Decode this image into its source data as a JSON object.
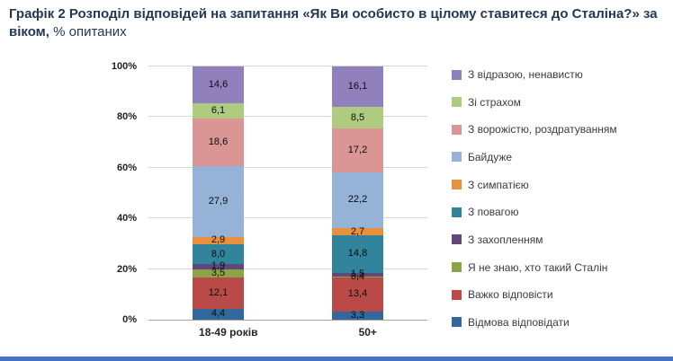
{
  "title": {
    "bold": "Графік 2 Розподіл відповідей на запитання «Як Ви особисто в цілому ставитеся до Сталіна?» за віком,",
    "suffix": " % опитаних"
  },
  "chart_data": {
    "type": "bar",
    "stacked": true,
    "orientation": "vertical",
    "title": "Графік 2 Розподіл відповідей на запитання «Як Ви особисто в цілому ставитеся до Сталіна?» за віком, % опитаних",
    "unit": "%",
    "ylim": [
      0,
      100
    ],
    "y_ticks": [
      "0%",
      "20%",
      "40%",
      "60%",
      "80%",
      "100%"
    ],
    "grid": true,
    "legend_position": "right",
    "categories": [
      "18-49 років",
      "50+"
    ],
    "series": [
      {
        "name": "Відмова відповідати",
        "color": "#31699C",
        "values": [
          4.4,
          3.3
        ],
        "labels": [
          "4,4",
          "3,3"
        ]
      },
      {
        "name": "Важко відповісти",
        "color": "#B94A48",
        "values": [
          12.1,
          13.4
        ],
        "labels": [
          "12,1",
          "13,4"
        ]
      },
      {
        "name": "Я не знаю, хто такий Сталін",
        "color": "#8CA447",
        "values": [
          3.5,
          0.4
        ],
        "labels": [
          "3,5",
          "0,4"
        ]
      },
      {
        "name": "З захопленням",
        "color": "#5F497A",
        "values": [
          1.9,
          1.5
        ],
        "labels": [
          "1,9",
          "1,5"
        ]
      },
      {
        "name": "З повагою",
        "color": "#31849B",
        "values": [
          8.0,
          14.8
        ],
        "labels": [
          "8,0",
          "14,8"
        ]
      },
      {
        "name": "З симпатією",
        "color": "#E8913C",
        "values": [
          2.9,
          2.7
        ],
        "labels": [
          "2,9",
          "2,7"
        ]
      },
      {
        "name": "Байдуже",
        "color": "#95B3D7",
        "values": [
          27.9,
          22.2
        ],
        "labels": [
          "27,9",
          "22,2"
        ]
      },
      {
        "name": "З ворожістю, роздратуванням",
        "color": "#D99694",
        "values": [
          18.6,
          17.2
        ],
        "labels": [
          "18,6",
          "17,2"
        ]
      },
      {
        "name": "Зі страхом",
        "color": "#AECB7F",
        "values": [
          6.1,
          8.5
        ],
        "labels": [
          "6,1",
          "8,5"
        ]
      },
      {
        "name": "З відразою, ненавистю",
        "color": "#9081BD",
        "values": [
          14.6,
          16.1
        ],
        "labels": [
          "14,6",
          "16,1"
        ]
      }
    ]
  },
  "footer": {
    "divider_color": "#4472C4"
  }
}
